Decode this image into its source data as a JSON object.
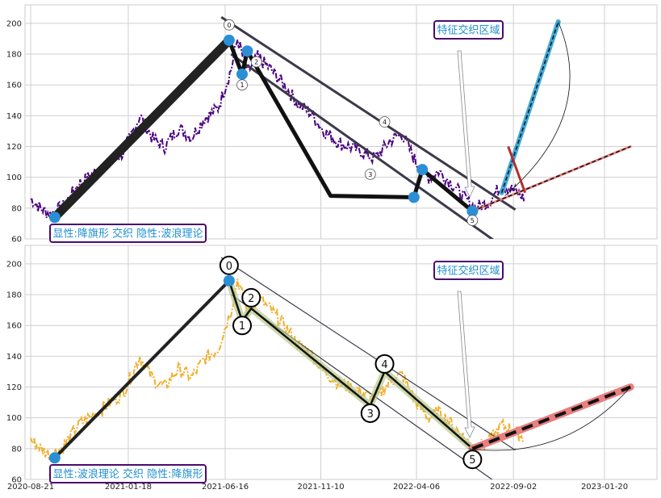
{
  "chart_data": [
    {
      "type": "line",
      "panel": "top",
      "x_ticks": [
        "2020-08-21",
        "2021-01-18",
        "2021-06-16",
        "2021-11-10",
        "2022-04-06",
        "2022-09-02",
        "2023-01-20"
      ],
      "y_ticks": [
        60,
        80,
        100,
        120,
        140,
        160,
        180,
        200
      ],
      "ylim": [
        60,
        212
      ],
      "grid": true,
      "series": [
        {
          "color": "#4b0082",
          "style": "dashdot",
          "anchors": [
            [
              "2020-08-21",
              86
            ],
            [
              "2020-09-05",
              80
            ],
            [
              "2020-09-20",
              76
            ],
            [
              "2020-10-10",
              81
            ],
            [
              "2020-11-01",
              95
            ],
            [
              "2020-11-25",
              102
            ],
            [
              "2020-12-15",
              108
            ],
            [
              "2021-01-10",
              116
            ],
            [
              "2021-02-05",
              140
            ],
            [
              "2021-02-25",
              125
            ],
            [
              "2021-03-15",
              120
            ],
            [
              "2021-04-05",
              132
            ],
            [
              "2021-04-25",
              126
            ],
            [
              "2021-05-15",
              138
            ],
            [
              "2021-06-05",
              145
            ],
            [
              "2021-06-25",
              170
            ],
            [
              "2021-07-05",
              190
            ],
            [
              "2021-07-20",
              168
            ],
            [
              "2021-08-05",
              178
            ],
            [
              "2021-08-25",
              170
            ],
            [
              "2021-09-15",
              160
            ],
            [
              "2021-10-05",
              148
            ],
            [
              "2021-10-25",
              142
            ],
            [
              "2021-11-15",
              130
            ],
            [
              "2021-12-10",
              122
            ],
            [
              "2022-01-05",
              118
            ],
            [
              "2022-02-01",
              112
            ],
            [
              "2022-02-25",
              124
            ],
            [
              "2022-03-15",
              128
            ],
            [
              "2022-04-05",
              110
            ],
            [
              "2022-04-25",
              100
            ],
            [
              "2022-05-10",
              104
            ],
            [
              "2022-05-30",
              96
            ],
            [
              "2022-06-20",
              86
            ],
            [
              "2022-07-05",
              80
            ],
            [
              "2022-07-25",
              84
            ],
            [
              "2022-08-15",
              95
            ],
            [
              "2022-09-01",
              92
            ],
            [
              "2022-09-20",
              86
            ]
          ]
        }
      ],
      "pattern_lines": {
        "flag_pole": [
          [
            "2020-09-27",
            74
          ],
          [
            "2021-06-22",
            189
          ]
        ],
        "wave_path": [
          [
            "2021-06-22",
            189
          ],
          [
            "2021-07-12",
            167
          ],
          [
            "2021-07-20",
            182
          ],
          [
            "2021-11-25",
            88
          ],
          [
            "2022-04-02",
            87
          ],
          [
            "2022-04-15",
            105
          ],
          [
            "2022-07-01",
            78
          ]
        ],
        "channel_upper": [
          [
            "2021-06-10",
            204
          ],
          [
            "2022-09-05",
            79
          ]
        ],
        "channel_lower": [
          [
            "2021-06-25",
            180
          ],
          [
            "2022-08-10",
            57
          ]
        ]
      },
      "points": [
        {
          "label": "",
          "date": "2020-09-27",
          "value": 74
        },
        {
          "label": "0",
          "date": "2021-06-22",
          "value": 189
        },
        {
          "label": "1",
          "date": "2021-07-12",
          "value": 167
        },
        {
          "label": "2",
          "date": "2021-07-20",
          "value": 182
        },
        {
          "label": "3",
          "date": "2022-04-02",
          "value": 87
        },
        {
          "label": "4",
          "date": "2022-04-15",
          "value": 105
        },
        {
          "label": "5",
          "date": "2022-07-01",
          "value": 78
        }
      ],
      "wave_labels": [
        {
          "label": "0",
          "date": "2021-06-22",
          "value": 199
        },
        {
          "label": "1",
          "date": "2021-07-12",
          "value": 160
        },
        {
          "label": "2",
          "date": "2021-08-03",
          "value": 175
        },
        {
          "label": "3",
          "date": "2022-01-25",
          "value": 102
        },
        {
          "label": "4",
          "date": "2022-02-16",
          "value": 136
        },
        {
          "label": "5",
          "date": "2022-07-01",
          "value": 72
        }
      ],
      "projections": [
        {
          "color": "#e88080",
          "from": [
            "2022-07-01",
            78
          ],
          "to": [
            "2023-03-01",
            120
          ],
          "style": "dashed"
        },
        {
          "color": "#3fa9d8",
          "from": [
            "2022-08-15",
            90
          ],
          "to": [
            "2022-11-10",
            201
          ],
          "style": "dashed"
        }
      ],
      "annotation": "特征交织区域",
      "legend_text": "显性:降旗形 交织 隐性:波浪理论"
    },
    {
      "type": "line",
      "panel": "bottom",
      "x_ticks": [
        "2020-08-21",
        "2021-01-18",
        "2021-06-16",
        "2021-11-10",
        "2022-04-06",
        "2022-09-02",
        "2023-01-20"
      ],
      "y_ticks": [
        60,
        80,
        100,
        120,
        140,
        160,
        180,
        200
      ],
      "ylim": [
        60,
        212
      ],
      "grid": true,
      "series": [
        {
          "color": "#f0b030",
          "style": "dashdot",
          "anchors": [
            [
              "2020-08-21",
              86
            ],
            [
              "2020-09-05",
              80
            ],
            [
              "2020-09-20",
              76
            ],
            [
              "2020-10-10",
              81
            ],
            [
              "2020-11-01",
              95
            ],
            [
              "2020-11-25",
              102
            ],
            [
              "2020-12-15",
              108
            ],
            [
              "2021-01-10",
              116
            ],
            [
              "2021-02-05",
              140
            ],
            [
              "2021-02-25",
              125
            ],
            [
              "2021-03-15",
              120
            ],
            [
              "2021-04-05",
              132
            ],
            [
              "2021-04-25",
              126
            ],
            [
              "2021-05-15",
              138
            ],
            [
              "2021-06-05",
              145
            ],
            [
              "2021-06-25",
              170
            ],
            [
              "2021-07-05",
              190
            ],
            [
              "2021-07-20",
              168
            ],
            [
              "2021-08-05",
              178
            ],
            [
              "2021-08-25",
              170
            ],
            [
              "2021-09-15",
              160
            ],
            [
              "2021-10-05",
              148
            ],
            [
              "2021-10-25",
              142
            ],
            [
              "2021-11-15",
              130
            ],
            [
              "2021-12-10",
              122
            ],
            [
              "2022-01-05",
              118
            ],
            [
              "2022-02-01",
              112
            ],
            [
              "2022-02-25",
              124
            ],
            [
              "2022-03-15",
              128
            ],
            [
              "2022-04-05",
              110
            ],
            [
              "2022-04-25",
              100
            ],
            [
              "2022-05-10",
              104
            ],
            [
              "2022-05-30",
              96
            ],
            [
              "2022-06-20",
              86
            ],
            [
              "2022-07-05",
              80
            ],
            [
              "2022-07-25",
              84
            ],
            [
              "2022-08-15",
              95
            ],
            [
              "2022-09-01",
              92
            ],
            [
              "2022-09-20",
              86
            ]
          ]
        }
      ],
      "pattern_lines": {
        "flag_pole": [
          [
            "2020-09-27",
            74
          ],
          [
            "2021-06-22",
            189
          ]
        ],
        "wave_path": [
          [
            "2021-06-22",
            189
          ],
          [
            "2021-07-12",
            163
          ],
          [
            "2021-07-26",
            171
          ],
          [
            "2022-01-25",
            108
          ],
          [
            "2022-02-16",
            130
          ],
          [
            "2022-07-01",
            80
          ]
        ],
        "channel_upper": [
          [
            "2021-06-10",
            204
          ],
          [
            "2022-09-05",
            79
          ]
        ],
        "channel_lower": [
          [
            "2021-06-25",
            180
          ],
          [
            "2022-08-10",
            57
          ]
        ]
      },
      "points": [
        {
          "label": "",
          "date": "2020-09-27",
          "value": 74
        },
        {
          "label": "",
          "date": "2021-06-22",
          "value": 189
        }
      ],
      "wave_labels": [
        {
          "label": "0",
          "date": "2021-06-22",
          "value": 199
        },
        {
          "label": "1",
          "date": "2021-07-12",
          "value": 160
        },
        {
          "label": "2",
          "date": "2021-07-26",
          "value": 178
        },
        {
          "label": "3",
          "date": "2022-01-25",
          "value": 103
        },
        {
          "label": "4",
          "date": "2022-02-16",
          "value": 135
        },
        {
          "label": "5",
          "date": "2022-07-01",
          "value": 73
        }
      ],
      "projections": [
        {
          "color": "#e88080",
          "from": [
            "2022-07-01",
            80
          ],
          "to": [
            "2023-03-01",
            120
          ],
          "style": "dashed"
        }
      ],
      "annotation": "特征交织区域",
      "legend_text": "显性:波浪理论 交织 隐性:降旗形"
    }
  ]
}
